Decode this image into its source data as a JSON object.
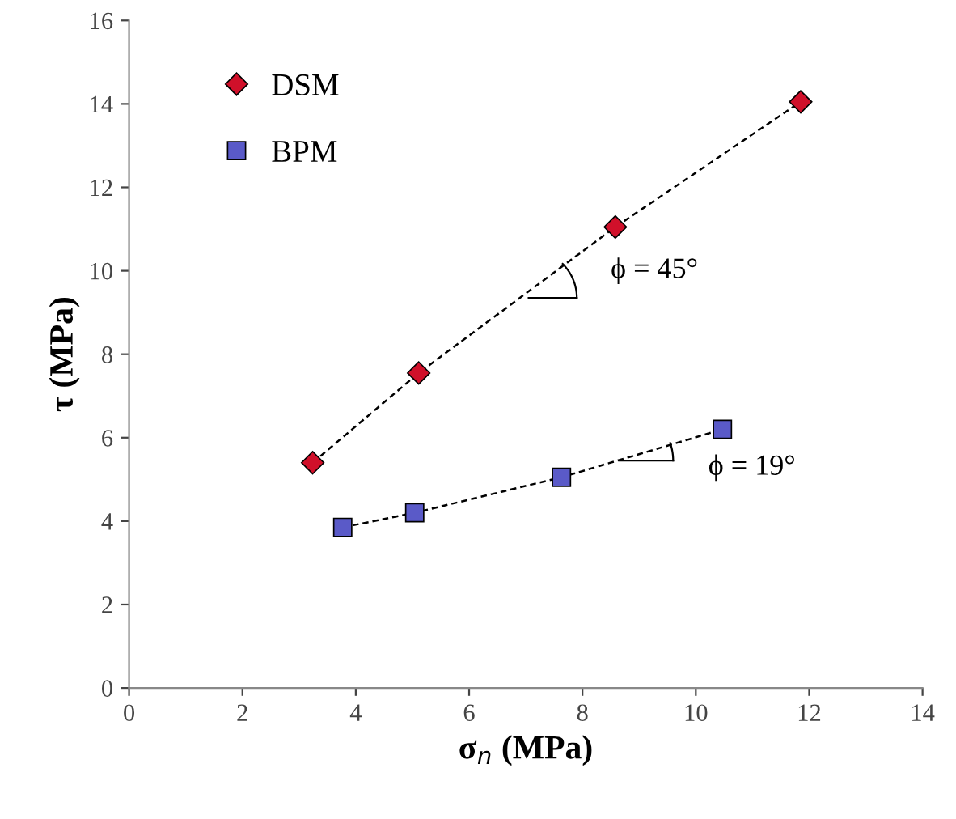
{
  "chart_data": {
    "type": "line",
    "xlabel": "σ$_{n}$ (MPa)",
    "ylabel": "τ (MPa)",
    "series": [
      {
        "name": "DSM",
        "color": "#d0102a",
        "marker": "diamond",
        "line_style": "dashed",
        "x": [
          3.24,
          5.11,
          8.58,
          11.85
        ],
        "values": [
          5.4,
          7.55,
          11.05,
          14.05
        ]
      },
      {
        "name": "BPM",
        "color": "#5a5ac8",
        "marker": "square",
        "line_style": "dashed",
        "x": [
          3.77,
          5.04,
          7.63,
          10.47
        ],
        "values": [
          3.85,
          4.2,
          5.05,
          6.2
        ]
      }
    ],
    "annotations": [
      "ϕ = 45°",
      "ϕ = 19°"
    ],
    "xlim": [
      0,
      14
    ],
    "xticks": [
      0,
      2,
      4,
      6,
      8,
      10,
      12,
      14
    ],
    "ylim": [
      0,
      16
    ],
    "yticks": [
      0,
      2,
      4,
      6,
      8,
      10,
      12,
      14,
      16
    ],
    "grid": false,
    "legend": "top left"
  }
}
